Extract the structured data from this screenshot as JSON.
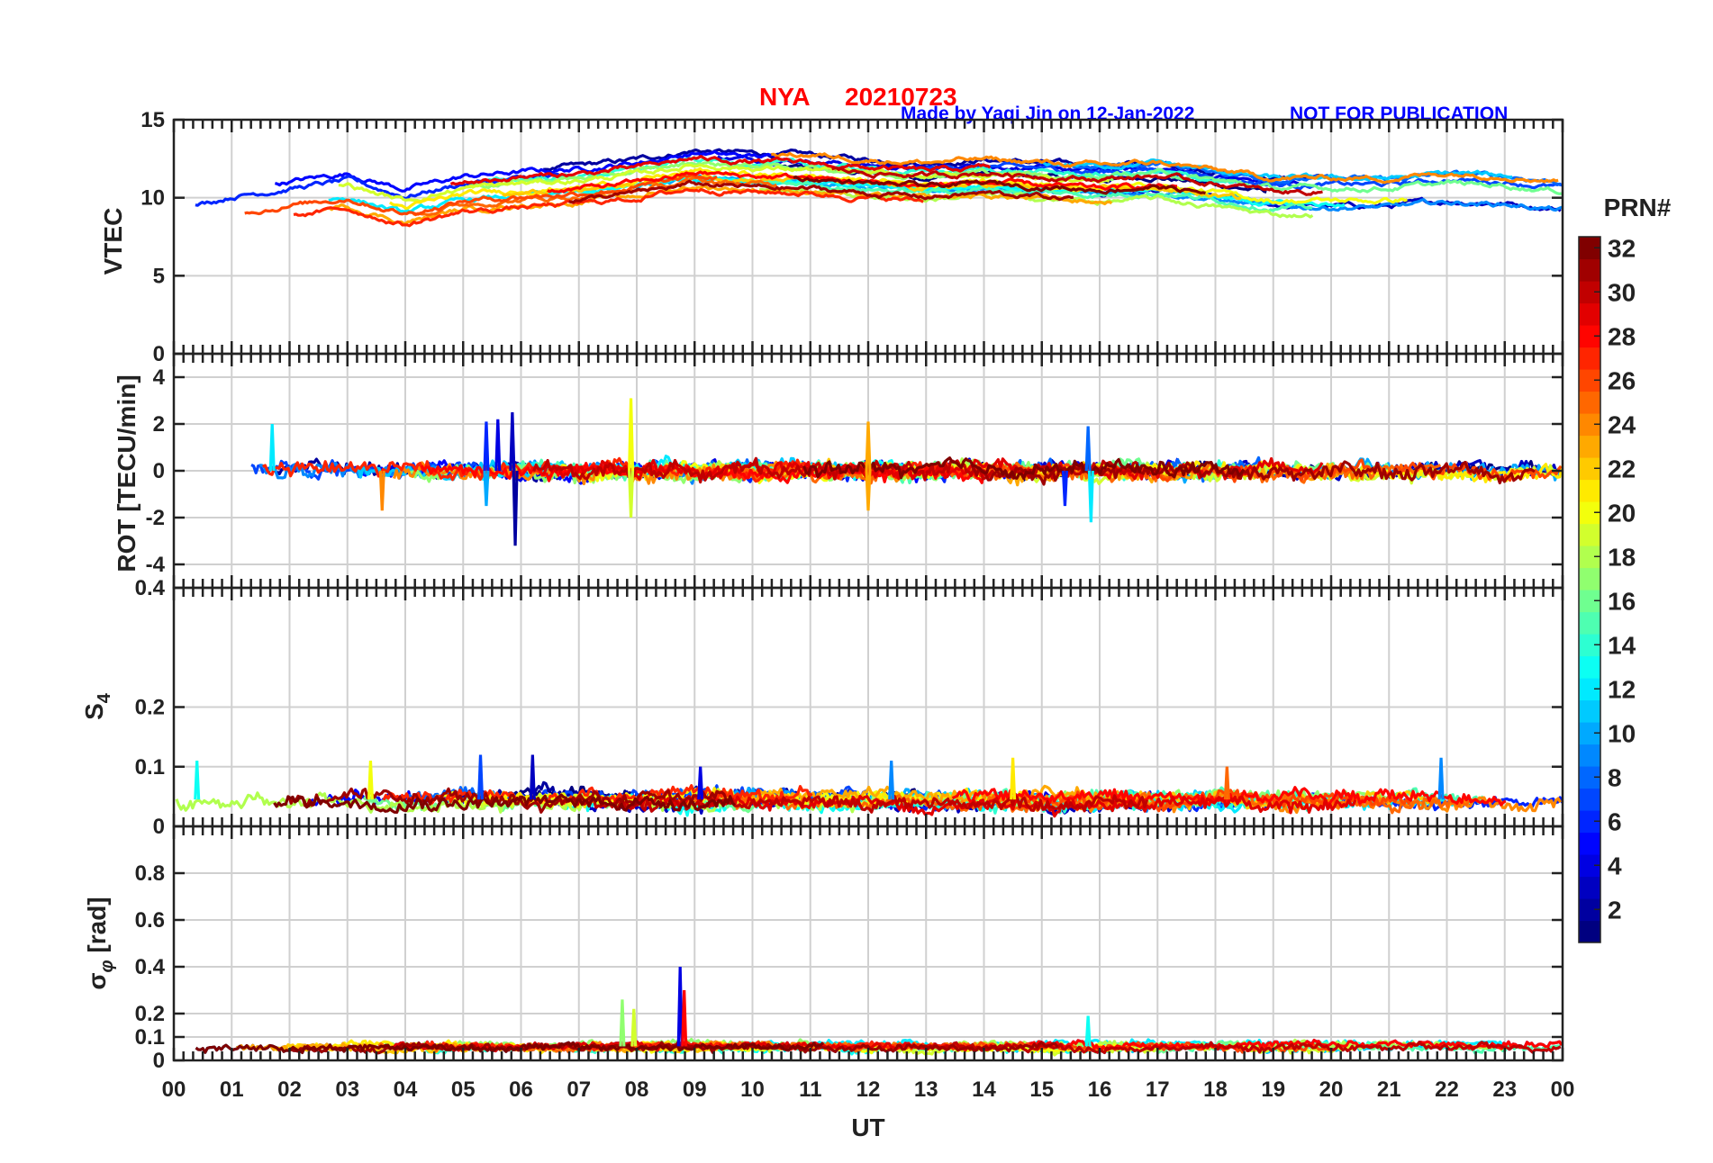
{
  "header": {
    "station": "NYA",
    "date": "20210723",
    "author_note": "Made by Yaqi Jin on 12-Jan-2022",
    "disclaimer": "NOT FOR PUBLICATION",
    "title_color": "#ff0000",
    "note_color": "#0000ff"
  },
  "chart_data": {
    "type": "line",
    "xlabel": "UT",
    "x_ticks": [
      "00",
      "01",
      "02",
      "03",
      "04",
      "05",
      "06",
      "07",
      "08",
      "09",
      "10",
      "11",
      "12",
      "13",
      "14",
      "15",
      "16",
      "17",
      "18",
      "19",
      "20",
      "21",
      "22",
      "23",
      "00"
    ],
    "xlim": [
      0,
      24
    ],
    "panels": [
      {
        "ylabel": "VTEC",
        "ylim": [
          0,
          15
        ],
        "y_ticks": [
          {
            "v": 0,
            "label": "0"
          },
          {
            "v": 5,
            "label": "5"
          },
          {
            "v": 10,
            "label": "10"
          },
          {
            "v": 15,
            "label": "15"
          }
        ],
        "grid": true,
        "trend_x": [
          0,
          1,
          2,
          3,
          4,
          5,
          6,
          7,
          8,
          9,
          10,
          11,
          12,
          13,
          14,
          15,
          16,
          17,
          18,
          19,
          20,
          21,
          22,
          23,
          24
        ],
        "trend_y": [
          8.5,
          9.5,
          10,
          10.5,
          9.5,
          10.3,
          10.6,
          10.8,
          11.2,
          11.8,
          11.6,
          11.5,
          11.2,
          11,
          11.2,
          11,
          10.8,
          11,
          10.5,
          10,
          10,
          10,
          10.3,
          10.2,
          9.8
        ],
        "spread": 1.3,
        "noise": 0.15
      },
      {
        "ylabel": "ROT [TECU/min]",
        "ylim": [
          -5,
          5
        ],
        "y_ticks": [
          {
            "v": -4,
            "label": "-4"
          },
          {
            "v": -2,
            "label": "-2"
          },
          {
            "v": 0,
            "label": "0"
          },
          {
            "v": 2,
            "label": "2"
          },
          {
            "v": 4,
            "label": "4"
          }
        ],
        "grid": true,
        "trend_x": [
          0,
          24
        ],
        "trend_y": [
          0,
          0
        ],
        "spread": 0.1,
        "noise": 0.25,
        "spikes": [
          {
            "x": 1.7,
            "y": 2.0,
            "prn": 12
          },
          {
            "x": 3.6,
            "y": -1.7,
            "prn": 24
          },
          {
            "x": 5.4,
            "y": 2.1,
            "prn": 6
          },
          {
            "x": 5.6,
            "y": 2.2,
            "prn": 4
          },
          {
            "x": 5.85,
            "y": 2.5,
            "prn": 3
          },
          {
            "x": 5.9,
            "y": -3.2,
            "prn": 2
          },
          {
            "x": 5.4,
            "y": -1.5,
            "prn": 10
          },
          {
            "x": 7.9,
            "y": 3.1,
            "prn": 20
          },
          {
            "x": 7.9,
            "y": -2.0,
            "prn": 19
          },
          {
            "x": 12.0,
            "y": 2.1,
            "prn": 23
          },
          {
            "x": 12.0,
            "y": -1.7,
            "prn": 23
          },
          {
            "x": 15.8,
            "y": 1.9,
            "prn": 8
          },
          {
            "x": 15.85,
            "y": -2.2,
            "prn": 12
          },
          {
            "x": 15.4,
            "y": -1.5,
            "prn": 6
          }
        ]
      },
      {
        "ylabel": "S4",
        "ylim": [
          0,
          0.4
        ],
        "y_ticks": [
          {
            "v": 0,
            "label": "0"
          },
          {
            "v": 0.1,
            "label": "0.1"
          },
          {
            "v": 0.2,
            "label": "0.2"
          },
          {
            "v": 0.4,
            "label": "0.4"
          }
        ],
        "grid": true,
        "trend_x": [
          0,
          24
        ],
        "trend_y": [
          0.045,
          0.045
        ],
        "spread": 0.008,
        "noise": 0.009,
        "spikes": [
          {
            "x": 0.4,
            "y": 0.11,
            "prn": 13
          },
          {
            "x": 3.4,
            "y": 0.11,
            "prn": 20
          },
          {
            "x": 5.3,
            "y": 0.12,
            "prn": 7
          },
          {
            "x": 6.2,
            "y": 0.12,
            "prn": 3
          },
          {
            "x": 9.1,
            "y": 0.1,
            "prn": 4
          },
          {
            "x": 12.4,
            "y": 0.11,
            "prn": 9
          },
          {
            "x": 14.5,
            "y": 0.115,
            "prn": 21
          },
          {
            "x": 18.2,
            "y": 0.1,
            "prn": 25
          },
          {
            "x": 21.9,
            "y": 0.115,
            "prn": 9
          }
        ]
      },
      {
        "ylabel": "σφ [rad]",
        "ylim": [
          0,
          1
        ],
        "y_ticks": [
          {
            "v": 0,
            "label": "0"
          },
          {
            "v": 0.1,
            "label": "0.1"
          },
          {
            "v": 0.2,
            "label": "0.2"
          },
          {
            "v": 0.4,
            "label": "0.4"
          },
          {
            "v": 0.6,
            "label": "0.6"
          },
          {
            "v": 0.8,
            "label": "0.8"
          }
        ],
        "grid": true,
        "trend_x": [
          0,
          24
        ],
        "trend_y": [
          0.06,
          0.06
        ],
        "spread": 0.01,
        "noise": 0.012,
        "spikes": [
          {
            "x": 7.75,
            "y": 0.26,
            "prn": 17
          },
          {
            "x": 7.95,
            "y": 0.22,
            "prn": 19
          },
          {
            "x": 8.75,
            "y": 0.4,
            "prn": 4
          },
          {
            "x": 8.82,
            "y": 0.3,
            "prn": 28
          },
          {
            "x": 15.8,
            "y": 0.19,
            "prn": 13
          }
        ]
      }
    ],
    "colorbar": {
      "label": "PRN#",
      "min": 1,
      "max": 32,
      "ticks": [
        "2",
        "4",
        "6",
        "8",
        "10",
        "12",
        "14",
        "16",
        "18",
        "20",
        "22",
        "24",
        "26",
        "28",
        "30",
        "32"
      ],
      "colormap": "jet"
    },
    "series_count": 32
  }
}
